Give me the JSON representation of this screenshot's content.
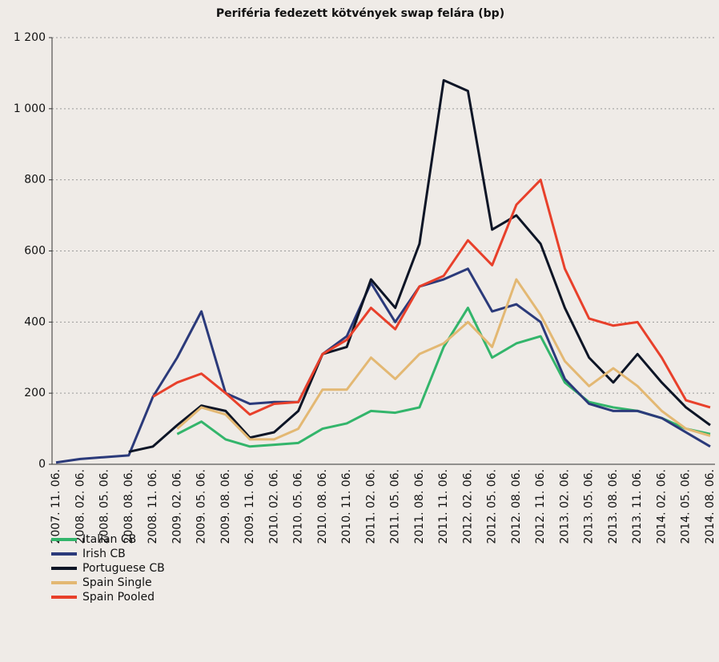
{
  "chart_data": {
    "type": "line",
    "title": "Periféria fedezett kötvények swap felára (bp)",
    "categories": [
      "2007. 11. 06.",
      "2008. 02. 06.",
      "2008. 05. 06.",
      "2008. 08. 06.",
      "2008. 11. 06.",
      "2009. 02. 06.",
      "2009. 05. 06.",
      "2009. 08. 06.",
      "2009. 11. 06.",
      "2010. 02. 06.",
      "2010. 05. 06.",
      "2010. 08. 06.",
      "2010. 11. 06.",
      "2011. 02. 06.",
      "2011. 05. 06.",
      "2011. 08. 06.",
      "2011. 11. 06.",
      "2012. 02. 06.",
      "2012. 05. 06.",
      "2012. 08. 06.",
      "2012. 11. 06.",
      "2013. 02. 06.",
      "2013. 05. 06.",
      "2013. 08. 06.",
      "2013. 11. 06.",
      "2014. 02. 06.",
      "2014. 05. 06.",
      "2014. 08. 06."
    ],
    "series": [
      {
        "name": "Italian CB",
        "color": "#33b56b",
        "values": [
          null,
          null,
          null,
          null,
          null,
          85,
          120,
          70,
          50,
          55,
          60,
          100,
          115,
          150,
          145,
          160,
          330,
          440,
          300,
          340,
          360,
          230,
          175,
          160,
          150,
          130,
          100,
          85
        ]
      },
      {
        "name": "Irish CB",
        "color": "#2b3a7a",
        "values": [
          5,
          15,
          20,
          25,
          190,
          300,
          430,
          200,
          170,
          175,
          175,
          310,
          360,
          510,
          400,
          500,
          520,
          550,
          430,
          450,
          400,
          240,
          170,
          150,
          150,
          130,
          90,
          50
        ]
      },
      {
        "name": "Portuguese CB",
        "color": "#0d1526",
        "values": [
          null,
          null,
          null,
          35,
          50,
          110,
          165,
          150,
          75,
          90,
          150,
          310,
          330,
          520,
          440,
          620,
          1080,
          1050,
          660,
          700,
          620,
          440,
          300,
          230,
          310,
          230,
          160,
          110
        ]
      },
      {
        "name": "Spain Single",
        "color": "#e3b873",
        "values": [
          null,
          null,
          null,
          null,
          null,
          100,
          160,
          140,
          70,
          70,
          100,
          210,
          210,
          300,
          240,
          310,
          340,
          400,
          330,
          520,
          420,
          290,
          220,
          270,
          220,
          150,
          100,
          80
        ]
      },
      {
        "name": "Spain Pooled",
        "color": "#e8402b",
        "values": [
          null,
          null,
          null,
          null,
          190,
          230,
          255,
          200,
          140,
          170,
          175,
          310,
          350,
          440,
          380,
          500,
          530,
          630,
          560,
          730,
          800,
          550,
          410,
          390,
          400,
          300,
          180,
          160
        ]
      }
    ],
    "ylim": [
      0,
      1200
    ],
    "yticks": [
      0,
      200,
      400,
      600,
      800,
      {
        "value": 1000,
        "label": "1 000"
      },
      {
        "value": 1200,
        "label": "1 200"
      }
    ],
    "grid": true
  }
}
